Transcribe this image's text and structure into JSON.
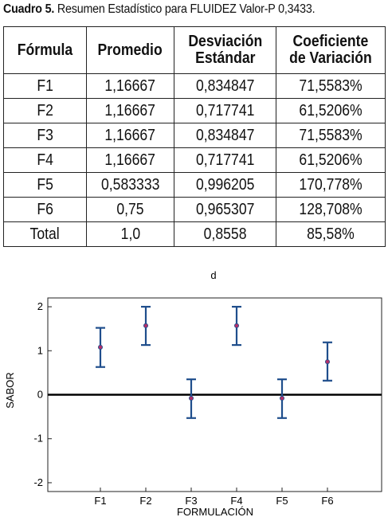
{
  "caption": {
    "prefix": "Cuadro 5.",
    "text": " Resumen Estadístico para FLUIDEZ Valor-P 0,3433."
  },
  "table": {
    "headers": [
      "Fórmula",
      "Promedio",
      "Desviación Estándar",
      "Coeficiente de Variación"
    ],
    "header_lines": [
      [
        "Fórmula"
      ],
      [
        "Promedio"
      ],
      [
        "Desviación",
        "Estándar"
      ],
      [
        "Coeficiente",
        "de Variación"
      ]
    ],
    "rows": [
      [
        "F1",
        "1,16667",
        "0,834847",
        "71,5583%"
      ],
      [
        "F2",
        "1,16667",
        "0,717741",
        "61,5206%"
      ],
      [
        "F3",
        "1,16667",
        "0,834847",
        "71,5583%"
      ],
      [
        "F4",
        "1,16667",
        "0,717741",
        "61,5206%"
      ],
      [
        "F5",
        "0,583333",
        "0,996205",
        "170,778%"
      ],
      [
        "F6",
        "0,75",
        "0,965307",
        "128,708%"
      ],
      [
        "Total",
        "1,0",
        "0,8558",
        "85,58%"
      ]
    ]
  },
  "chart_data": {
    "type": "errorbar",
    "title": "d",
    "xlabel": "FORMULACIÓN",
    "ylabel": "SABOR",
    "categories": [
      "F1",
      "F2",
      "F3",
      "F4",
      "F5",
      "F6"
    ],
    "values": [
      1.08,
      1.57,
      -0.08,
      1.57,
      -0.08,
      0.75
    ],
    "lower": [
      0.63,
      1.13,
      -0.53,
      1.13,
      -0.53,
      0.32
    ],
    "upper": [
      1.52,
      2.0,
      0.35,
      2.0,
      0.35,
      1.19
    ],
    "ylim": [
      -2.2,
      2.2
    ],
    "yticks": [
      2,
      1,
      0,
      -1,
      -2
    ],
    "ytick_labels": [
      "2",
      "1",
      "0",
      "-1",
      "-2"
    ],
    "reference_line": 0,
    "grid": false,
    "colors": {
      "bar": "#1f4e8c",
      "marker": "#b0306a",
      "reference": "#000000"
    }
  }
}
